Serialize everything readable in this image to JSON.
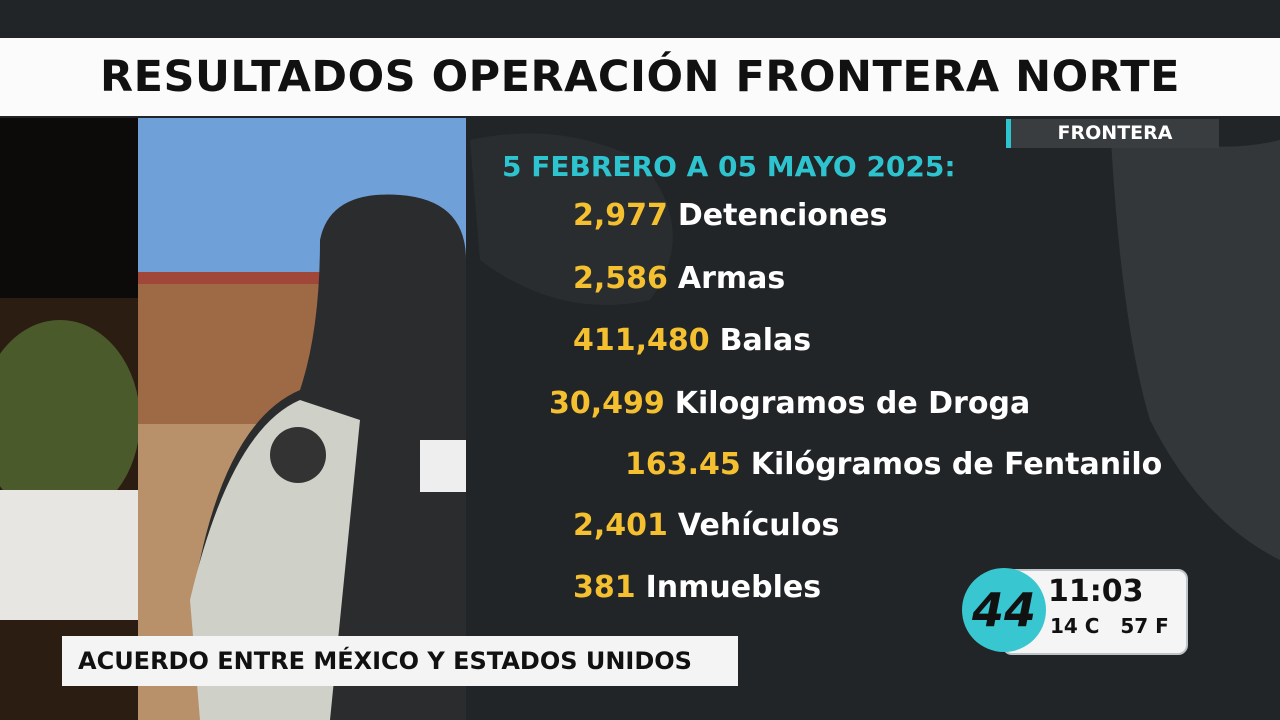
{
  "header": {
    "title": "RESULTADOS OPERACIÓN FRONTERA NORTE",
    "tag": "FRONTERA"
  },
  "period": "5 FEBRERO A 05 MAYO 2025:",
  "items": [
    {
      "number": "2,977",
      "label": "Detenciones"
    },
    {
      "number": "2,586",
      "label": "Armas"
    },
    {
      "number": "411,480",
      "label": "Balas"
    },
    {
      "number": "30,499",
      "label": "Kilogramos de Droga"
    },
    {
      "number": "163.45",
      "label": "Kilógramos de Fentanilo"
    },
    {
      "number": "2,401",
      "label": "Vehículos"
    },
    {
      "number": "381",
      "label": "Inmuebles"
    }
  ],
  "lower_third": "ACUERDO ENTRE MÉXICO Y ESTADOS UNIDOS",
  "clock": {
    "logo": "44",
    "time": "11:03",
    "temp_c": "14 C",
    "temp_f": "57 F"
  }
}
